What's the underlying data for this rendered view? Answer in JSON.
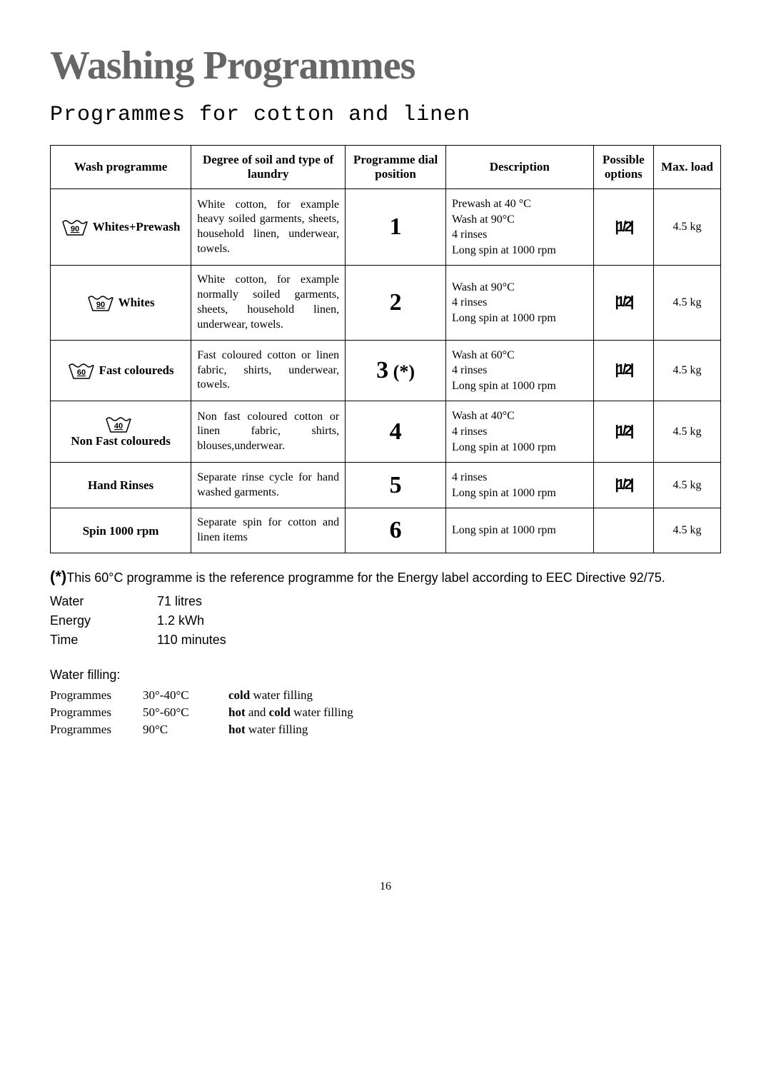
{
  "title": "Washing Programmes",
  "subtitle": "Programmes for cotton and linen",
  "table": {
    "headers": [
      "Wash programme",
      "Degree of soil and type of laundry",
      "Programme dial position",
      "Description",
      "Possible options",
      "Max. load"
    ],
    "col_widths": [
      "21%",
      "23%",
      "15%",
      "22%",
      "9%",
      "10%"
    ],
    "rows": [
      {
        "temp": "90",
        "programme": "Whites+Prewash",
        "soil": "White cotton, for example heavy soiled garments, sheets, household linen, underwear, towels.",
        "dial": "1",
        "dial_ast": "",
        "description": "Prewash at 40 °C\nWash at 90°C\n4 rinses\nLong spin at 1000 rpm",
        "option_icon": true,
        "load": "4.5 kg"
      },
      {
        "temp": "90",
        "programme": "Whites",
        "soil": "White cotton, for example normally soiled garments, sheets, household linen, underwear, towels.",
        "dial": "2",
        "dial_ast": "",
        "description": "Wash at 90°C\n4 rinses\nLong spin at 1000 rpm",
        "option_icon": true,
        "load": "4.5 kg"
      },
      {
        "temp": "60",
        "programme": "Fast coloureds",
        "soil": "Fast coloured cotton or linen fabric, shirts, underwear, towels.",
        "dial": "3",
        "dial_ast": " (*)",
        "description": "Wash at 60°C\n4 rinses\nLong spin at 1000 rpm",
        "option_icon": true,
        "load": "4.5 kg"
      },
      {
        "temp": "40",
        "programme": "Non Fast coloureds",
        "soil": "Non fast coloured cotton or linen fabric, shirts, blouses,underwear.",
        "dial": "4",
        "dial_ast": "",
        "description": "Wash at 40°C\n4 rinses\nLong spin at 1000 rpm",
        "option_icon": true,
        "load": "4.5 kg"
      },
      {
        "temp": "",
        "programme": "Hand Rinses",
        "soil": "Separate rinse cycle for hand washed garments.",
        "dial": "5",
        "dial_ast": "",
        "description": "4 rinses\nLong spin at 1000 rpm",
        "option_icon": true,
        "load": "4.5 kg"
      },
      {
        "temp": "",
        "programme": "Spin 1000 rpm",
        "soil": "Separate spin for cotton and linen items",
        "dial": "6",
        "dial_ast": "",
        "description": "Long spin at 1000 rpm",
        "option_icon": false,
        "load": "4.5 kg"
      }
    ]
  },
  "footnote": {
    "marker": "(*)",
    "text": "This 60°C programme is the reference programme for the Energy label according to EEC Directive 92/75."
  },
  "specs": [
    {
      "label": "Water",
      "value": "71 litres"
    },
    {
      "label": "Energy",
      "value": "1.2 kWh"
    },
    {
      "label": "Time",
      "value": "110 minutes"
    }
  ],
  "filling": {
    "title": "Water filling:",
    "rows": [
      {
        "col1": "Programmes",
        "col2": "30°-40°C",
        "bold1": "cold",
        "rest1": " water filling",
        "bold2": "",
        "rest2": ""
      },
      {
        "col1": "Programmes",
        "col2": "50°-60°C",
        "bold1": "hot",
        "rest1": " and ",
        "bold2": "cold",
        "rest2": " water filling"
      },
      {
        "col1": "Programmes",
        "col2": "90°C",
        "bold1": "hot",
        "rest1": " water filling",
        "bold2": "",
        "rest2": ""
      }
    ]
  },
  "page_number": "16",
  "colors": {
    "title_color": "#666666",
    "border_color": "#000000",
    "text_color": "#000000"
  }
}
